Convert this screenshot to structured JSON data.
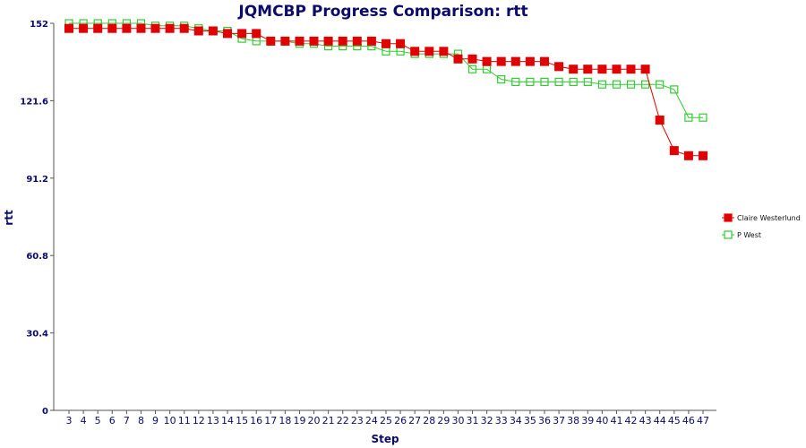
{
  "chart_data": {
    "type": "line",
    "title": "JQMCBP Progress Comparison: rtt",
    "xlabel": "Step",
    "ylabel": "rtt",
    "ylim": [
      0,
      152
    ],
    "yticks": [
      "0",
      "30.4",
      "60.8",
      "91.2",
      "121.6",
      "152"
    ],
    "x": [
      3,
      4,
      5,
      6,
      7,
      8,
      9,
      10,
      11,
      12,
      13,
      14,
      15,
      16,
      17,
      18,
      19,
      20,
      21,
      22,
      23,
      24,
      25,
      26,
      27,
      28,
      29,
      30,
      31,
      32,
      33,
      34,
      35,
      36,
      37,
      38,
      39,
      40,
      41,
      42,
      43,
      44,
      45,
      46,
      47
    ],
    "series": [
      {
        "name": "Claire Westerlund",
        "color": "#e00000",
        "marker": "filled-square",
        "values": [
          150,
          150,
          150,
          150,
          150,
          150,
          150,
          150,
          150,
          149,
          149,
          148,
          148,
          148,
          145,
          145,
          145,
          145,
          145,
          145,
          145,
          145,
          144,
          144,
          141,
          141,
          141,
          138,
          138,
          137,
          137,
          137,
          137,
          137,
          135,
          134,
          134,
          134,
          134,
          134,
          134,
          114,
          102,
          100,
          100
        ]
      },
      {
        "name": "P West",
        "color": "#33cc33",
        "marker": "hollow-square",
        "values": [
          152,
          152,
          152,
          152,
          152,
          152,
          151,
          151,
          151,
          150,
          149,
          149,
          146,
          145,
          145,
          145,
          144,
          144,
          143,
          143,
          143,
          143,
          141,
          141,
          140,
          140,
          140,
          140,
          134,
          134,
          130,
          129,
          129,
          129,
          129,
          129,
          129,
          128,
          128,
          128,
          128,
          128,
          126,
          115,
          115
        ]
      }
    ],
    "legend_position": "right",
    "grid": false
  }
}
